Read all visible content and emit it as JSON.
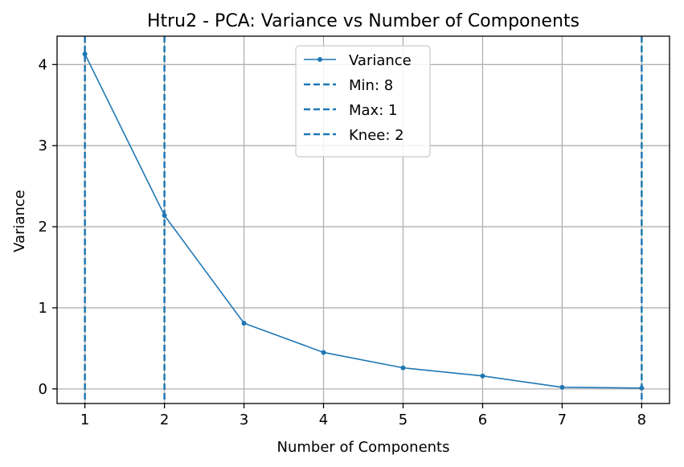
{
  "chart_data": {
    "type": "line",
    "title": "Htru2 - PCA: Variance vs Number of Components",
    "xlabel": "Number of Components",
    "ylabel": "Variance",
    "x": [
      1,
      2,
      3,
      4,
      5,
      6,
      7,
      8
    ],
    "series": [
      {
        "name": "Variance",
        "values": [
          4.13,
          2.14,
          0.81,
          0.45,
          0.26,
          0.16,
          0.02,
          0.01
        ],
        "color": "#1f77b4"
      }
    ],
    "vlines": [
      {
        "name": "Min: 8",
        "x": 8,
        "color": "#1f77b4",
        "style": "dashed"
      },
      {
        "name": "Max: 1",
        "x": 1,
        "color": "#1f77b4",
        "style": "dashed"
      },
      {
        "name": "Knee: 2",
        "x": 2,
        "color": "#1f77b4",
        "style": "dashed"
      }
    ],
    "xlim": [
      0.65,
      8.35
    ],
    "ylim": [
      -0.18,
      4.35
    ],
    "xticks": [
      1,
      2,
      3,
      4,
      5,
      6,
      7,
      8
    ],
    "yticks": [
      0,
      1,
      2,
      3,
      4
    ],
    "grid": true,
    "legend": "upper center"
  }
}
